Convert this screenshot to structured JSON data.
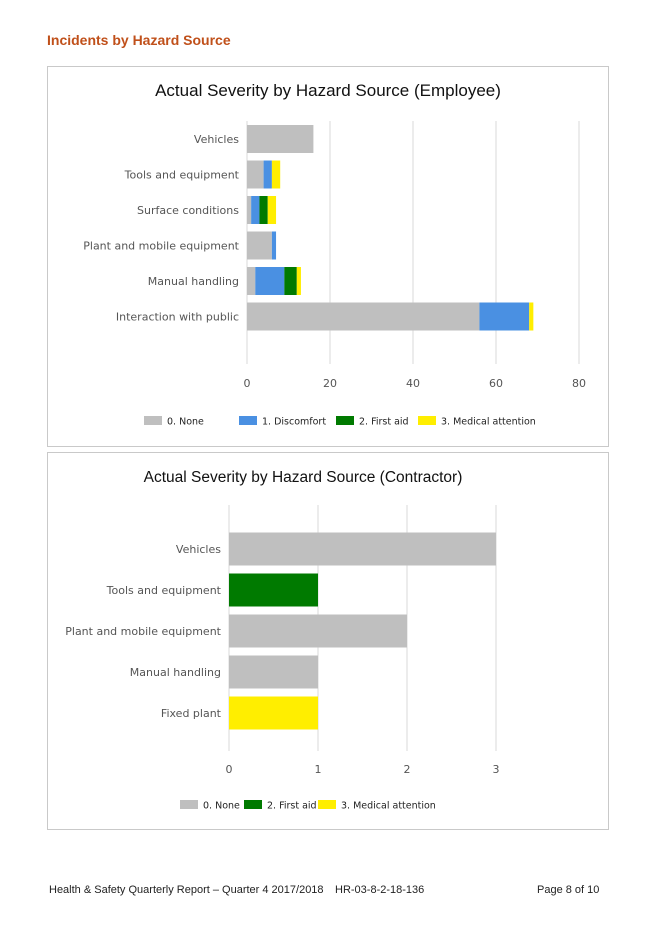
{
  "heading": "Incidents by Hazard Source",
  "chart_data": [
    {
      "type": "bar",
      "orientation": "horizontal",
      "stacked": true,
      "title": "Actual Severity by Hazard Source (Employee)",
      "categories": [
        "Vehicles",
        "Tools and equipment",
        "Surface conditions",
        "Plant and mobile equipment",
        "Manual handling",
        "Interaction with public"
      ],
      "series": [
        {
          "name": "0. None",
          "color": "#bfbfbf",
          "values": [
            16,
            4,
            1,
            6,
            2,
            56
          ]
        },
        {
          "name": "1. Discomfort",
          "color": "#4a90e2",
          "values": [
            0,
            2,
            2,
            1,
            7,
            12
          ]
        },
        {
          "name": "2. First aid",
          "color": "#007a00",
          "values": [
            0,
            0,
            2,
            0,
            3,
            0
          ]
        },
        {
          "name": "3. Medical attention",
          "color": "#ffee00",
          "values": [
            0,
            2,
            2,
            0,
            1,
            1
          ]
        }
      ],
      "xlim": [
        0,
        80
      ],
      "xticks": [
        0,
        20,
        40,
        60,
        80
      ],
      "grid": true,
      "legend": "bottom"
    },
    {
      "type": "bar",
      "orientation": "horizontal",
      "stacked": true,
      "title": "Actual Severity by Hazard Source (Contractor)",
      "categories": [
        "Vehicles",
        "Tools and equipment",
        "Plant and mobile equipment",
        "Manual handling",
        "Fixed plant"
      ],
      "series": [
        {
          "name": "0. None",
          "color": "#bfbfbf",
          "values": [
            3,
            0,
            2,
            1,
            0
          ]
        },
        {
          "name": "2. First aid",
          "color": "#007a00",
          "values": [
            0,
            1,
            0,
            0,
            0
          ]
        },
        {
          "name": "3. Medical attention",
          "color": "#ffee00",
          "values": [
            0,
            0,
            0,
            0,
            1
          ]
        }
      ],
      "xlim": [
        0,
        3
      ],
      "xticks": [
        0,
        1,
        2,
        3
      ],
      "grid": true,
      "legend": "bottom"
    }
  ],
  "footer": {
    "left": "Health & Safety Quarterly Report – Quarter 4  2017/2018",
    "center": "HR-03-8-2-18-136",
    "right": "Page 8 of 10"
  }
}
